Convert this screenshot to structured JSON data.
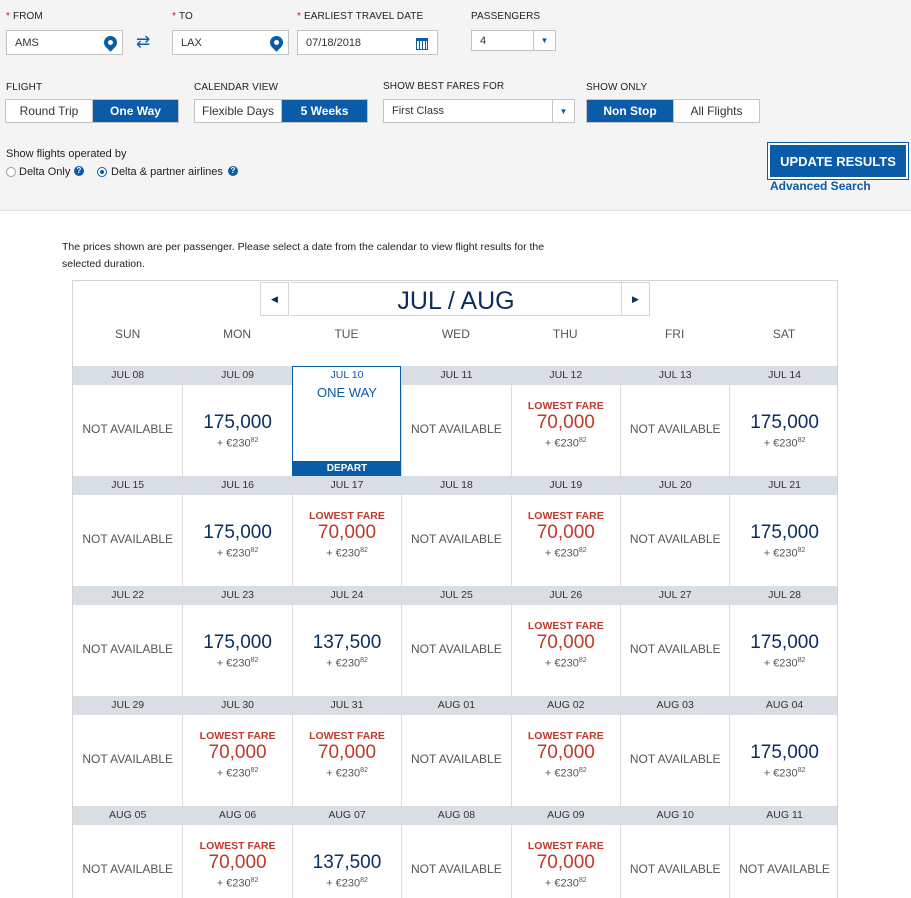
{
  "search": {
    "from_label": "FROM",
    "from_value": "AMS",
    "to_label": "TO",
    "to_value": "LAX",
    "date_label": "EARLIEST TRAVEL DATE",
    "date_value": "07/18/2018",
    "passengers_label": "PASSENGERS",
    "passengers_value": "4",
    "flight_label": "FLIGHT",
    "flight_options": [
      "Round Trip",
      "One Way"
    ],
    "calendar_label": "CALENDAR VIEW",
    "calendar_options": [
      "Flexible Days",
      "5 Weeks"
    ],
    "fares_label": "SHOW BEST FARES FOR",
    "fares_value": "First Class",
    "show_only_label": "SHOW ONLY",
    "show_only_options": [
      "Non Stop",
      "All Flights"
    ],
    "operated_label": "Show flights operated by",
    "operated_options": [
      "Delta Only",
      "Delta & partner airlines"
    ],
    "update_button": "UPDATE RESULTS",
    "advanced_search": "Advanced Search",
    "help_glyph": "?"
  },
  "calendar": {
    "note": "The prices shown are per passenger. Please select a date from the calendar to view flight results for the selected duration.",
    "month_title": "JUL / AUG",
    "prev_glyph": "◀",
    "next_glyph": "▶",
    "weekdays": [
      "SUN",
      "MON",
      "TUE",
      "WED",
      "THU",
      "FRI",
      "SAT"
    ],
    "na_text": "NOT AVAILABLE",
    "lowest_text": "LOWEST FARE",
    "selected_top": "ONE WAY",
    "selected_bottom": "DEPART",
    "tax_prefix": "+ €230",
    "tax_sup": "82",
    "weeks": [
      [
        {
          "date": "JUL 08",
          "status": "na"
        },
        {
          "date": "JUL 09",
          "miles": "175,000"
        },
        {
          "date": "JUL 10",
          "selected": true
        },
        {
          "date": "JUL 11",
          "status": "na"
        },
        {
          "date": "JUL 12",
          "miles": "70,000",
          "lowest": true
        },
        {
          "date": "JUL 13",
          "status": "na"
        },
        {
          "date": "JUL 14",
          "miles": "175,000"
        }
      ],
      [
        {
          "date": "JUL 15",
          "status": "na"
        },
        {
          "date": "JUL 16",
          "miles": "175,000"
        },
        {
          "date": "JUL 17",
          "miles": "70,000",
          "lowest": true
        },
        {
          "date": "JUL 18",
          "status": "na"
        },
        {
          "date": "JUL 19",
          "miles": "70,000",
          "lowest": true
        },
        {
          "date": "JUL 20",
          "status": "na"
        },
        {
          "date": "JUL 21",
          "miles": "175,000"
        }
      ],
      [
        {
          "date": "JUL 22",
          "status": "na"
        },
        {
          "date": "JUL 23",
          "miles": "175,000"
        },
        {
          "date": "JUL 24",
          "miles": "137,500"
        },
        {
          "date": "JUL 25",
          "status": "na"
        },
        {
          "date": "JUL 26",
          "miles": "70,000",
          "lowest": true
        },
        {
          "date": "JUL 27",
          "status": "na"
        },
        {
          "date": "JUL 28",
          "miles": "175,000"
        }
      ],
      [
        {
          "date": "JUL 29",
          "status": "na"
        },
        {
          "date": "JUL 30",
          "miles": "70,000",
          "lowest": true
        },
        {
          "date": "JUL 31",
          "miles": "70,000",
          "lowest": true
        },
        {
          "date": "AUG 01",
          "status": "na"
        },
        {
          "date": "AUG 02",
          "miles": "70,000",
          "lowest": true
        },
        {
          "date": "AUG 03",
          "status": "na"
        },
        {
          "date": "AUG 04",
          "miles": "175,000"
        }
      ],
      [
        {
          "date": "AUG 05",
          "status": "na"
        },
        {
          "date": "AUG 06",
          "miles": "70,000",
          "lowest": true
        },
        {
          "date": "AUG 07",
          "miles": "137,500"
        },
        {
          "date": "AUG 08",
          "status": "na"
        },
        {
          "date": "AUG 09",
          "miles": "70,000",
          "lowest": true
        },
        {
          "date": "AUG 10",
          "status": "na"
        },
        {
          "date": "AUG 11",
          "status": "na"
        }
      ]
    ]
  }
}
